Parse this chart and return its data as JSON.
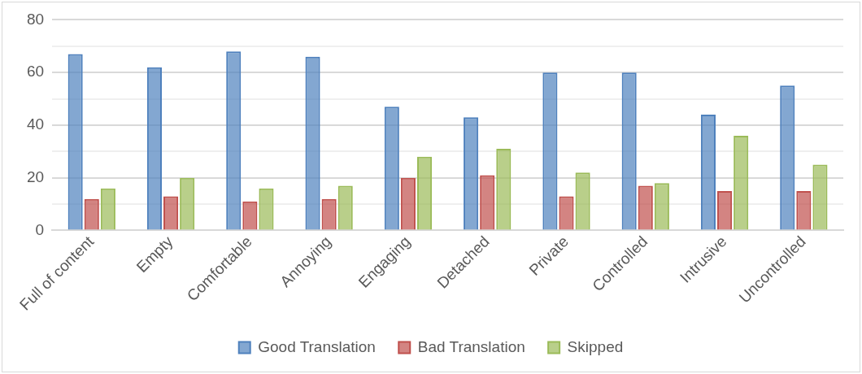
{
  "chart_data": {
    "type": "bar",
    "categories": [
      "Full of content",
      "Empty",
      "Comfortable",
      "Annoying",
      "Engaging",
      "Detached",
      "Private",
      "Controlled",
      "Intrusive",
      "Uncontrolled"
    ],
    "series": [
      {
        "name": "Good Translation",
        "color": "#4f81bd",
        "values": [
          67,
          62,
          68,
          66,
          47,
          43,
          60,
          60,
          44,
          55
        ]
      },
      {
        "name": "Bad Translation",
        "color": "#c0504d",
        "values": [
          12,
          13,
          11,
          12,
          20,
          21,
          13,
          17,
          15,
          15
        ]
      },
      {
        "name": "Skipped",
        "color": "#9bbb59",
        "values": [
          16,
          20,
          16,
          17,
          28,
          31,
          22,
          18,
          36,
          25
        ]
      }
    ],
    "ylim": [
      0,
      80
    ],
    "yticks": [
      0,
      {
        "value": 10,
        "label": null
      },
      20,
      {
        "value": 30,
        "label": null
      },
      40,
      {
        "value": 50,
        "label": null
      },
      60,
      {
        "value": 70,
        "label": null
      },
      80
    ],
    "grid": "y",
    "legend": "bottom"
  }
}
